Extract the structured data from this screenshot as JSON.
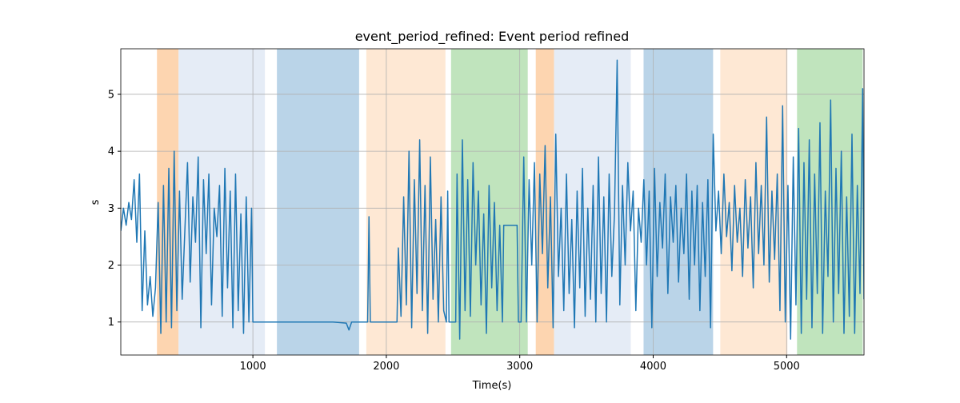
{
  "chart_data": {
    "type": "line",
    "title": "event_period_refined: Event period refined",
    "xlabel": "Time(s)",
    "ylabel": "s",
    "xlim": [
      10,
      5580
    ],
    "ylim": [
      0.42,
      5.8
    ],
    "xticks": [
      1000,
      2000,
      3000,
      4000,
      5000
    ],
    "yticks": [
      1,
      2,
      3,
      4,
      5
    ],
    "grid": true,
    "spans": [
      {
        "start": 281,
        "end": 443,
        "color": "#fdd5b0"
      },
      {
        "start": 443,
        "end": 1090,
        "color": "#e5ecf6"
      },
      {
        "start": 1180,
        "end": 1796,
        "color": "#bad4e8"
      },
      {
        "start": 1850,
        "end": 2443,
        "color": "#fee8d4"
      },
      {
        "start": 2485,
        "end": 3060,
        "color": "#c0e4bd"
      },
      {
        "start": 3120,
        "end": 3257,
        "color": "#fdd5b0"
      },
      {
        "start": 3257,
        "end": 3832,
        "color": "#e5ecf6"
      },
      {
        "start": 3928,
        "end": 4449,
        "color": "#bad4e8"
      },
      {
        "start": 4503,
        "end": 5006,
        "color": "#fee8d4"
      },
      {
        "start": 5078,
        "end": 5570,
        "color": "#c0e4bd"
      }
    ],
    "x": [
      10,
      30,
      50,
      70,
      90,
      110,
      130,
      150,
      170,
      190,
      210,
      230,
      250,
      270,
      290,
      310,
      330,
      350,
      370,
      390,
      410,
      430,
      450,
      470,
      490,
      510,
      530,
      550,
      570,
      590,
      610,
      630,
      650,
      670,
      690,
      710,
      730,
      750,
      770,
      790,
      810,
      830,
      850,
      870,
      890,
      910,
      930,
      950,
      970,
      990,
      1000,
      1200,
      1400,
      1600,
      1700,
      1720,
      1740,
      1860,
      1870,
      1880,
      2080,
      2090,
      2110,
      2130,
      2150,
      2170,
      2190,
      2210,
      2230,
      2250,
      2270,
      2290,
      2310,
      2330,
      2350,
      2370,
      2390,
      2410,
      2430,
      2450,
      2460,
      2470,
      2520,
      2530,
      2550,
      2570,
      2590,
      2610,
      2630,
      2650,
      2670,
      2690,
      2710,
      2730,
      2750,
      2770,
      2790,
      2810,
      2830,
      2850,
      2870,
      2880,
      2980,
      2990,
      3010,
      3030,
      3050,
      3070,
      3090,
      3110,
      3130,
      3150,
      3170,
      3190,
      3210,
      3230,
      3250,
      3270,
      3290,
      3310,
      3330,
      3350,
      3370,
      3390,
      3410,
      3430,
      3450,
      3470,
      3490,
      3510,
      3530,
      3550,
      3570,
      3590,
      3610,
      3630,
      3650,
      3670,
      3690,
      3710,
      3730,
      3750,
      3770,
      3790,
      3810,
      3830,
      3850,
      3870,
      3890,
      3910,
      3930,
      3950,
      3970,
      3990,
      4010,
      4030,
      4050,
      4070,
      4090,
      4110,
      4130,
      4150,
      4170,
      4190,
      4210,
      4230,
      4250,
      4270,
      4290,
      4310,
      4330,
      4350,
      4370,
      4390,
      4410,
      4430,
      4450,
      4470,
      4490,
      4510,
      4530,
      4550,
      4570,
      4590,
      4610,
      4630,
      4650,
      4670,
      4690,
      4710,
      4730,
      4750,
      4770,
      4790,
      4810,
      4830,
      4850,
      4870,
      4890,
      4910,
      4930,
      4950,
      4970,
      4990,
      5010,
      5030,
      5050,
      5070,
      5090,
      5110,
      5130,
      5150,
      5170,
      5190,
      5210,
      5230,
      5250,
      5270,
      5290,
      5310,
      5330,
      5350,
      5370,
      5390,
      5410,
      5430,
      5450,
      5470,
      5490,
      5510,
      5530,
      5550,
      5570,
      5580
    ],
    "series": [
      {
        "name": "event_period_refined",
        "color": "#1f77b4",
        "values": [
          2.6,
          3.0,
          2.7,
          3.1,
          2.8,
          3.5,
          2.4,
          3.6,
          1.2,
          2.6,
          1.3,
          1.8,
          1.1,
          1.6,
          3.1,
          0.8,
          3.4,
          1.0,
          3.7,
          0.9,
          4.0,
          1.2,
          3.3,
          1.4,
          2.6,
          3.8,
          1.7,
          3.2,
          2.4,
          3.9,
          0.9,
          3.5,
          2.2,
          3.6,
          1.3,
          3.0,
          2.5,
          3.4,
          1.1,
          3.7,
          1.6,
          3.3,
          0.9,
          3.6,
          1.2,
          2.9,
          0.8,
          3.2,
          1.0,
          3.0,
          1.0,
          1.0,
          1.0,
          1.0,
          0.98,
          0.86,
          1.0,
          1.0,
          2.85,
          1.0,
          1.0,
          2.3,
          1.1,
          3.2,
          1.3,
          4.0,
          0.9,
          3.5,
          1.5,
          4.2,
          1.2,
          3.4,
          0.8,
          3.9,
          1.4,
          2.8,
          1.0,
          3.2,
          1.2,
          1.0,
          3.3,
          1.0,
          1.0,
          3.6,
          0.7,
          4.2,
          1.2,
          3.5,
          1.1,
          3.8,
          2.0,
          3.3,
          1.3,
          2.9,
          0.8,
          3.4,
          1.6,
          3.1,
          1.2,
          2.7,
          1.0,
          2.7,
          2.7,
          1.0,
          1.0,
          3.9,
          1.0,
          3.5,
          2.0,
          3.8,
          1.0,
          3.6,
          2.2,
          4.1,
          1.6,
          3.2,
          0.9,
          4.3,
          1.8,
          3.0,
          1.2,
          3.6,
          1.5,
          2.8,
          0.9,
          3.3,
          1.6,
          3.7,
          1.1,
          3.0,
          1.4,
          3.4,
          1.0,
          3.9,
          1.5,
          3.2,
          1.0,
          3.6,
          1.8,
          2.9,
          5.6,
          1.3,
          3.4,
          2.0,
          3.8,
          2.6,
          3.3,
          1.2,
          3.0,
          2.4,
          3.5,
          2.0,
          3.3,
          0.9,
          3.7,
          1.8,
          3.1,
          2.3,
          3.6,
          1.5,
          3.2,
          2.4,
          3.4,
          1.7,
          3.0,
          2.2,
          3.6,
          1.4,
          3.3,
          2.0,
          3.4,
          1.2,
          3.1,
          1.8,
          3.5,
          0.9,
          4.3,
          2.6,
          3.3,
          2.2,
          3.6,
          2.5,
          3.1,
          1.9,
          3.4,
          2.4,
          3.0,
          1.8,
          3.5,
          2.3,
          3.2,
          1.6,
          3.8,
          2.2,
          3.4,
          2.0,
          4.6,
          1.7,
          3.3,
          2.1,
          3.6,
          1.2,
          4.8,
          1.0,
          3.4,
          0.7,
          3.9,
          1.3,
          4.4,
          0.8,
          3.8,
          1.4,
          4.2,
          0.9,
          3.6,
          1.5,
          4.5,
          0.8,
          3.3,
          1.8,
          4.9,
          1.0,
          3.7,
          1.5,
          4.0,
          0.8,
          3.2,
          1.1,
          4.3,
          0.8,
          3.4,
          1.5,
          5.1,
          1.4
        ]
      }
    ]
  }
}
